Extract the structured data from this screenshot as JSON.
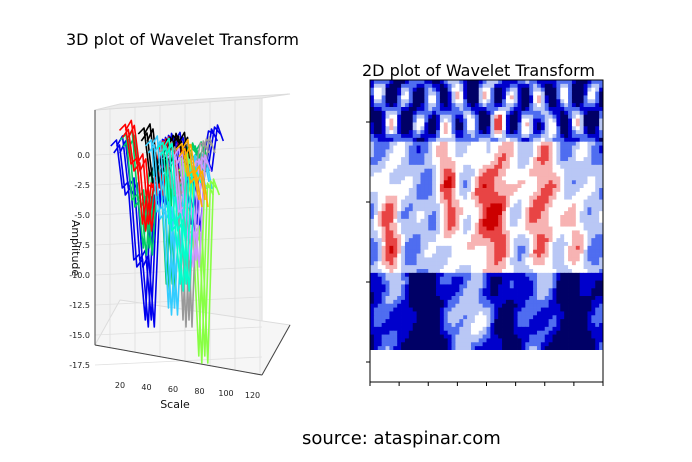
{
  "titles": {
    "plot3d": "3D plot of Wavelet Transform",
    "plot2d": "2D plot of Wavelet Transform",
    "source": "source: ataspinar.com"
  },
  "chart_data": [
    {
      "type": "line",
      "subtype": "3d-surface-lines",
      "title": "3D plot of Wavelet Transform",
      "xlabel": "Scale",
      "ylabel": "Amplitude",
      "x_ticks": [
        "20",
        "40",
        "60",
        "80",
        "100",
        "120"
      ],
      "y_ticks": [
        "0.0",
        "-2.5",
        "-5.0",
        "-7.5",
        "-10.0",
        "-12.5",
        "-15.0",
        "-17.5"
      ],
      "xlim": [
        0,
        128
      ],
      "ylim": [
        -18,
        2
      ],
      "grid": true,
      "colors": [
        "#0000ee",
        "#00cc66",
        "#ff0000",
        "#000000",
        "#33ccff",
        "#88ff44",
        "#999999",
        "#cc99ff",
        "#00ffcc",
        "#ffaa00"
      ],
      "series": [
        {
          "color": "#0000ee",
          "x": [
            5,
            15,
            25,
            35,
            45,
            55,
            65,
            75,
            85,
            95
          ],
          "y": [
            0.5,
            -3,
            -9,
            -14,
            -4,
            0.8,
            -2,
            -6,
            -1,
            1.5
          ]
        },
        {
          "color": "#00cc66",
          "x": [
            12,
            22,
            32,
            42,
            52,
            62,
            72,
            82
          ],
          "y": [
            1,
            -4,
            -8,
            -2,
            -11,
            -3,
            0,
            -1
          ]
        },
        {
          "color": "#ff0000",
          "x": [
            10,
            20,
            30,
            40,
            50,
            60
          ],
          "y": [
            1.8,
            -1,
            -6,
            -3,
            0.5,
            -2
          ]
        },
        {
          "color": "#000000",
          "x": [
            25,
            35,
            45,
            55,
            65
          ],
          "y": [
            1.5,
            -2,
            -1,
            0.8,
            -3
          ]
        },
        {
          "color": "#33ccff",
          "x": [
            30,
            40,
            50,
            60,
            70,
            80
          ],
          "y": [
            0.5,
            -5,
            -13,
            -4,
            -1,
            -2.5
          ]
        },
        {
          "color": "#88ff44",
          "x": [
            55,
            65,
            75,
            85
          ],
          "y": [
            -1,
            -7,
            -17,
            -3
          ]
        },
        {
          "color": "#999999",
          "x": [
            40,
            50,
            60,
            70,
            80
          ],
          "y": [
            0,
            -3,
            -14,
            -2,
            0.5
          ]
        },
        {
          "color": "#cc99ff",
          "x": [
            45,
            55,
            65,
            75
          ],
          "y": [
            -0.5,
            -5,
            -9,
            -1
          ]
        },
        {
          "color": "#00ffcc",
          "x": [
            35,
            45,
            55,
            65
          ],
          "y": [
            0.3,
            -6,
            -11,
            -2
          ]
        },
        {
          "color": "#ffaa00",
          "x": [
            50,
            60,
            70
          ],
          "y": [
            0.2,
            -2,
            -4
          ]
        }
      ]
    },
    {
      "type": "heatmap",
      "title": "2D plot of Wavelet Transform",
      "colormap": [
        "#000066",
        "#0000cc",
        "#4f6df0",
        "#b9c7f5",
        "#ffffff",
        "#f7b3b3",
        "#e84444",
        "#cc0000"
      ],
      "x_tick_count": 9
    }
  ]
}
